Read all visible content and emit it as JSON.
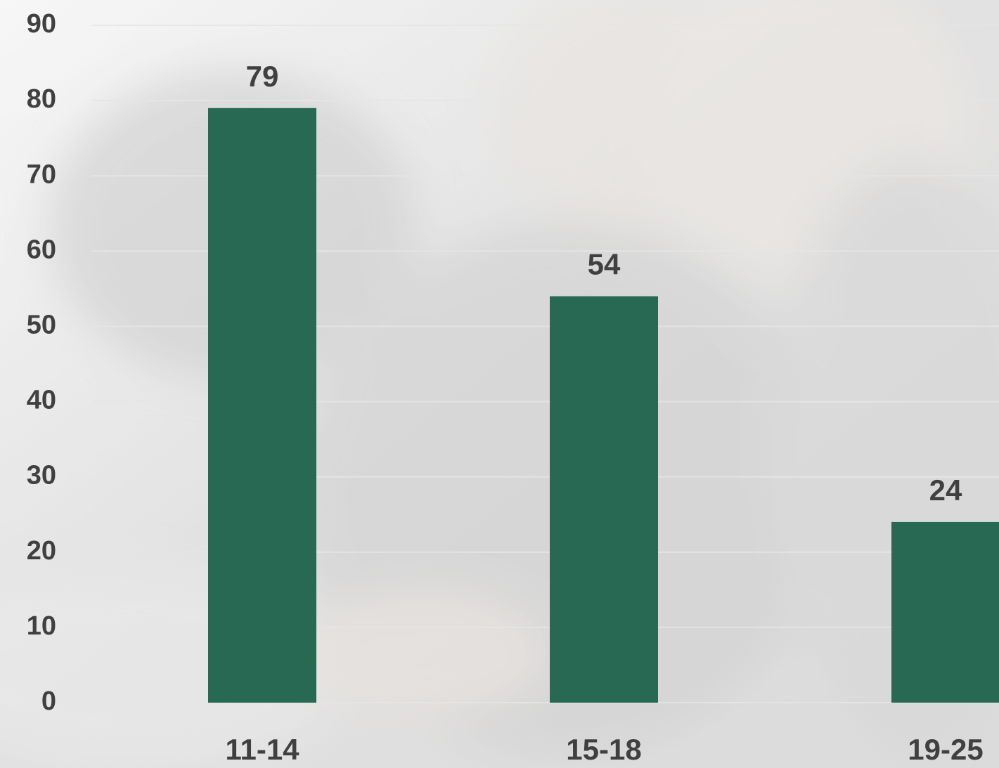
{
  "chart_data": {
    "type": "bar",
    "categories": [
      "11-14",
      "15-18",
      "19-25"
    ],
    "values": [
      79,
      54,
      24
    ],
    "color": "#276953",
    "ylim": [
      0,
      90
    ],
    "yticks": [
      0,
      10,
      20,
      30,
      40,
      50,
      60,
      70,
      80,
      90
    ],
    "grid": true
  }
}
